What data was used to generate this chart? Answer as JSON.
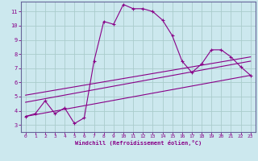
{
  "xlabel": "Windchill (Refroidissement éolien,°C)",
  "bg_color": "#cce8ee",
  "grid_color": "#aacccc",
  "line_color": "#880088",
  "border_color": "#666699",
  "xlim": [
    -0.5,
    23.5
  ],
  "ylim": [
    2.5,
    11.7
  ],
  "xticks": [
    0,
    1,
    2,
    3,
    4,
    5,
    6,
    7,
    8,
    9,
    10,
    11,
    12,
    13,
    14,
    15,
    16,
    17,
    18,
    19,
    20,
    21,
    22,
    23
  ],
  "yticks": [
    3,
    4,
    5,
    6,
    7,
    8,
    9,
    10,
    11
  ],
  "curve1_x": [
    0,
    1,
    2,
    3,
    4,
    5,
    6,
    7,
    8,
    9,
    10,
    11,
    12,
    13,
    14,
    15,
    16,
    17,
    18,
    19,
    20,
    21,
    22,
    23
  ],
  "curve1_y": [
    3.6,
    3.8,
    4.7,
    3.8,
    4.2,
    3.1,
    3.5,
    7.5,
    10.3,
    10.1,
    11.5,
    11.2,
    11.2,
    11.0,
    10.4,
    9.3,
    7.5,
    6.7,
    7.3,
    8.3,
    8.3,
    7.8,
    7.1,
    6.5
  ],
  "curve2_x": [
    0,
    23
  ],
  "curve2_y": [
    3.6,
    6.5
  ],
  "curve3_x": [
    0,
    23
  ],
  "curve3_y": [
    4.6,
    7.5
  ],
  "curve4_x": [
    0,
    23
  ],
  "curve4_y": [
    5.1,
    7.8
  ]
}
